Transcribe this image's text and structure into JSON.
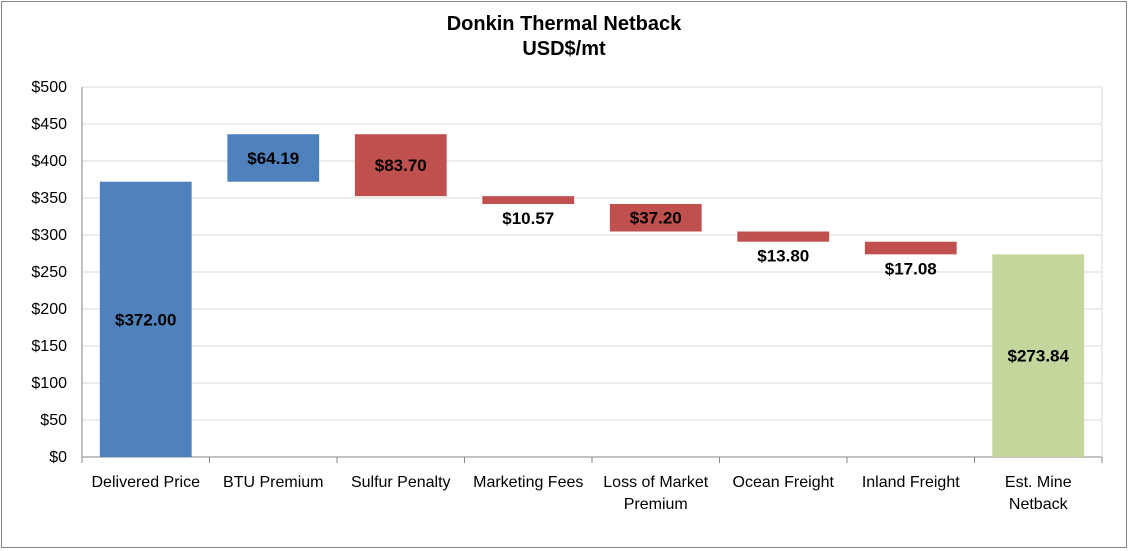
{
  "chart_data": {
    "type": "bar",
    "subtype": "waterfall",
    "title": "Donkin Thermal Netback",
    "subtitle": "USD$/mt",
    "categories": [
      [
        "Delivered Price"
      ],
      [
        "BTU Premium"
      ],
      [
        "Sulfur Penalty"
      ],
      [
        "Marketing Fees"
      ],
      [
        "Loss of Market",
        "Premium"
      ],
      [
        "Ocean Freight"
      ],
      [
        "Inland Freight"
      ],
      [
        "Est. Mine",
        "Netback"
      ]
    ],
    "bars": [
      {
        "start": 0,
        "end": 372.0,
        "label": "$372.00",
        "kind": "total"
      },
      {
        "start": 372.0,
        "end": 436.19,
        "label": "$64.19",
        "kind": "increase"
      },
      {
        "start": 436.19,
        "end": 352.49,
        "label": "$83.70",
        "kind": "decrease"
      },
      {
        "start": 352.49,
        "end": 341.92,
        "label": "$10.57",
        "kind": "decrease"
      },
      {
        "start": 341.92,
        "end": 304.72,
        "label": "$37.20",
        "kind": "decrease"
      },
      {
        "start": 304.72,
        "end": 290.92,
        "label": "$13.80",
        "kind": "decrease"
      },
      {
        "start": 290.92,
        "end": 273.84,
        "label": "$17.08",
        "kind": "decrease"
      },
      {
        "start": 0,
        "end": 273.84,
        "label": "$273.84",
        "kind": "net"
      }
    ],
    "ylim": [
      0,
      500
    ],
    "ytick_step": 50,
    "ytick_labels": [
      "$0",
      "$50",
      "$100",
      "$150",
      "$200",
      "$250",
      "$300",
      "$350",
      "$400",
      "$450",
      "$500"
    ],
    "grid": true,
    "legend": "none",
    "colors": {
      "total": "#4f81bd",
      "increase": "#4f81bd",
      "decrease": "#c0504d",
      "net": "#c3d69b",
      "grid": "#d9d9d9",
      "axis": "#868686"
    }
  }
}
